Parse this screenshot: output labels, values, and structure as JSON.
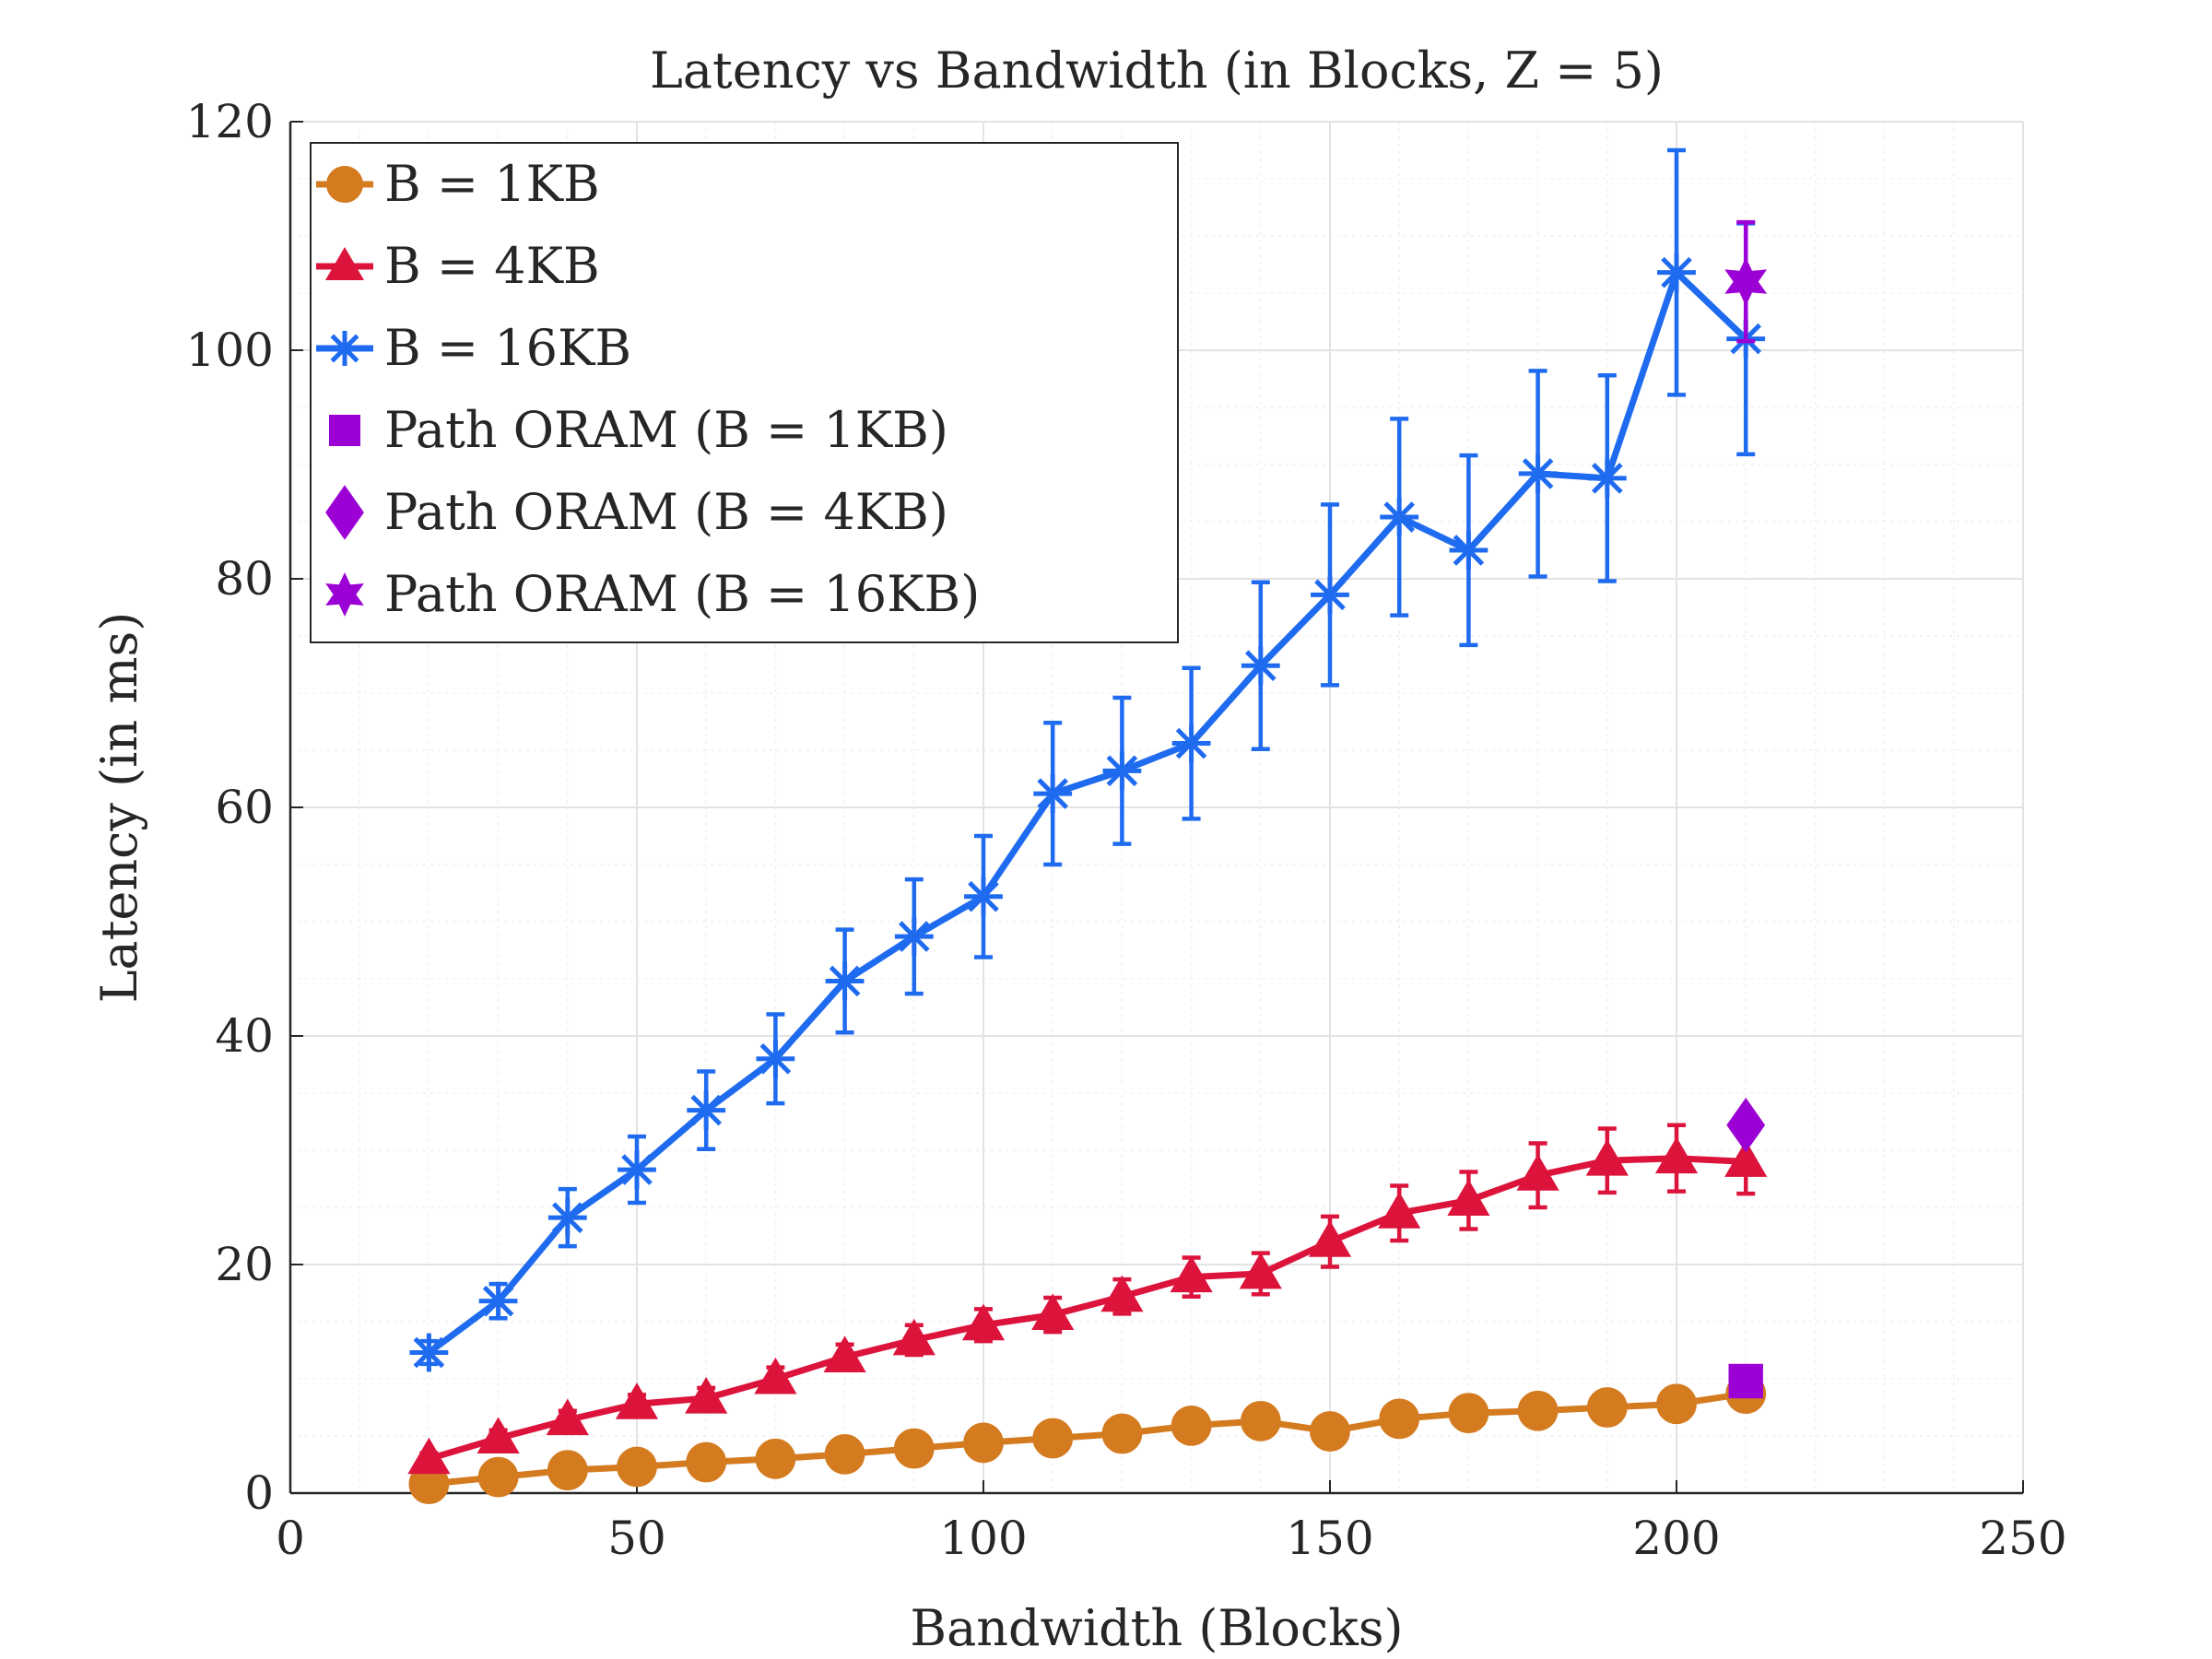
{
  "chart_data": {
    "type": "line",
    "title": "Latency vs Bandwidth (in Blocks, Z = 5)",
    "xlabel": "Bandwidth (Blocks)",
    "ylabel": "Latency (in ms)",
    "xlim": [
      0,
      250
    ],
    "ylim": [
      0,
      120
    ],
    "x_ticks": [
      "0",
      "50",
      "100",
      "150",
      "200",
      "250"
    ],
    "y_ticks": [
      "0",
      "20",
      "40",
      "60",
      "80",
      "100",
      "120"
    ],
    "grid": true,
    "legend_position": "top-left",
    "x": [
      20,
      30,
      40,
      50,
      60,
      70,
      80,
      90,
      100,
      110,
      120,
      130,
      140,
      150,
      160,
      170,
      180,
      190,
      200,
      210
    ],
    "series": [
      {
        "name": "B = 1KB",
        "color": "#d47b20",
        "marker": "circle",
        "values": [
          0.8,
          1.4,
          2.0,
          2.3,
          2.7,
          3.0,
          3.4,
          3.9,
          4.4,
          4.8,
          5.2,
          5.9,
          6.3,
          5.4,
          6.5,
          7.0,
          7.2,
          7.5,
          7.8,
          8.7
        ],
        "errors": [
          0.3,
          0.3,
          0.4,
          0.4,
          0.4,
          0.5,
          0.5,
          0.5,
          0.5,
          0.6,
          0.6,
          0.7,
          0.7,
          0.6,
          0.7,
          0.7,
          0.8,
          0.8,
          0.8,
          0.9
        ]
      },
      {
        "name": "B = 4KB",
        "color": "#dc143c",
        "marker": "triangle",
        "values": [
          3.0,
          4.8,
          6.4,
          7.8,
          8.3,
          10.0,
          11.9,
          13.4,
          14.7,
          15.6,
          17.2,
          18.9,
          19.2,
          22.0,
          24.5,
          25.6,
          27.8,
          29.1,
          29.3,
          29.0
        ],
        "errors": [
          0.5,
          0.7,
          0.8,
          0.8,
          0.9,
          1.0,
          1.1,
          1.3,
          1.4,
          1.5,
          1.5,
          1.7,
          1.8,
          2.2,
          2.4,
          2.5,
          2.8,
          2.8,
          2.9,
          2.8
        ]
      },
      {
        "name": "B = 16KB",
        "color": "#1f6bf0",
        "marker": "asterisk",
        "values": [
          12.3,
          16.8,
          24.1,
          28.3,
          33.5,
          38.0,
          44.8,
          48.7,
          52.2,
          61.2,
          63.2,
          65.6,
          72.4,
          78.6,
          85.4,
          82.5,
          89.2,
          88.8,
          106.8,
          101.0
        ],
        "errors": [
          1.0,
          1.5,
          2.5,
          2.9,
          3.4,
          3.9,
          4.5,
          5.0,
          5.3,
          6.2,
          6.4,
          6.6,
          7.3,
          7.9,
          8.6,
          8.3,
          9.0,
          9.0,
          10.7,
          10.1
        ]
      },
      {
        "name": "Path ORAM (B = 1KB)",
        "color": "#9b00d4",
        "marker": "square",
        "x": [
          210
        ],
        "values": [
          9.8
        ]
      },
      {
        "name": "Path ORAM (B = 4KB)",
        "color": "#9b00d4",
        "marker": "diamond",
        "x": [
          210
        ],
        "values": [
          32.2
        ]
      },
      {
        "name": "Path ORAM (B = 16KB)",
        "color": "#9b00d4",
        "marker": "hexagram",
        "x": [
          210
        ],
        "values": [
          106.0
        ],
        "errors": [
          5.2
        ]
      }
    ]
  }
}
